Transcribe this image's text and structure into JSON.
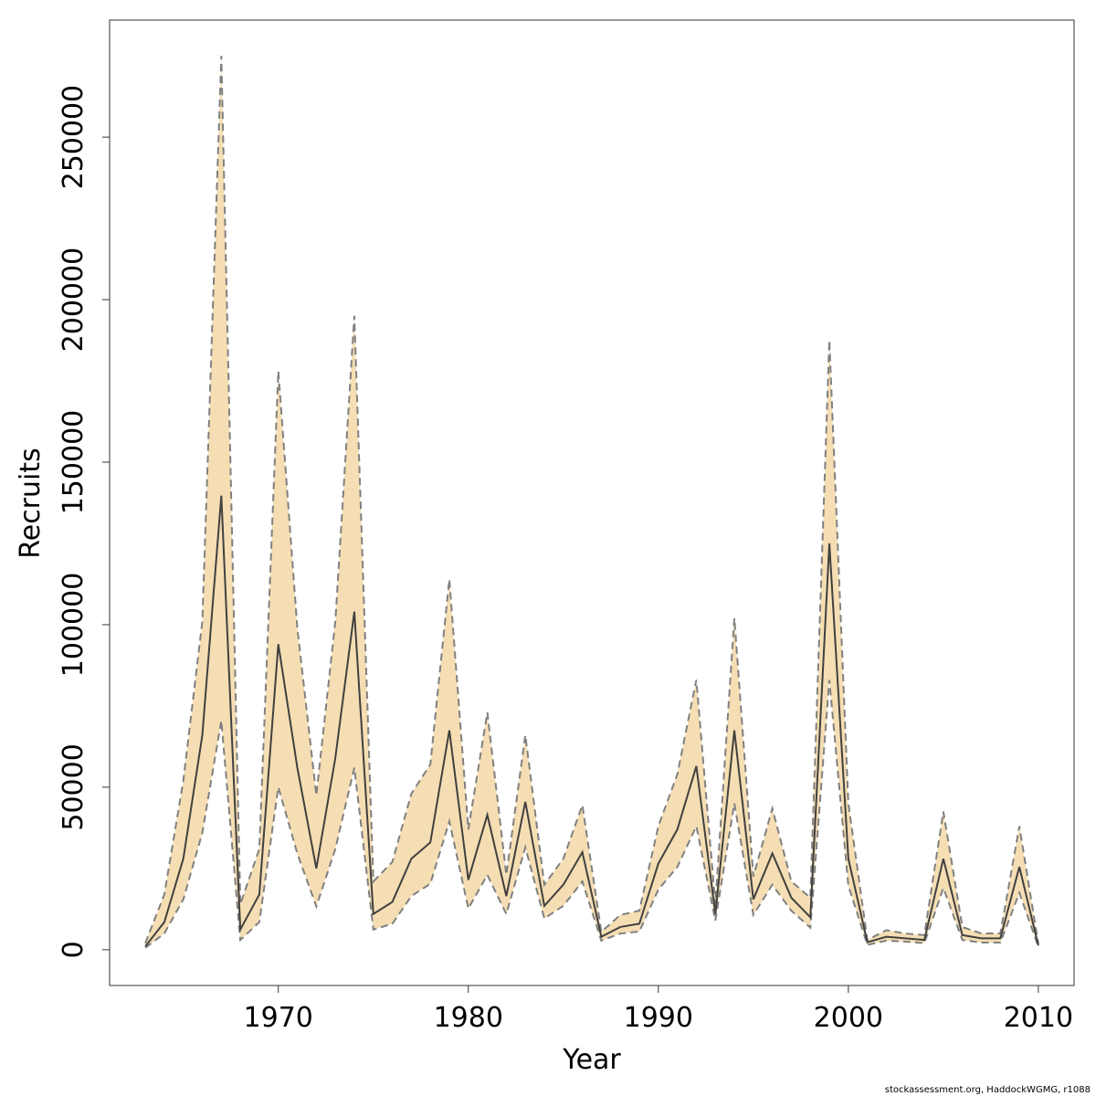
{
  "chart_data": {
    "type": "line",
    "x_label": "Year",
    "y_label": "Recruits",
    "footnote": "stockassessment.org, HaddockWGMG, r1088",
    "x": [
      1963,
      1964,
      1965,
      1966,
      1967,
      1968,
      1969,
      1970,
      1971,
      1972,
      1973,
      1974,
      1975,
      1976,
      1977,
      1978,
      1979,
      1980,
      1981,
      1982,
      1983,
      1984,
      1985,
      1986,
      1987,
      1988,
      1989,
      1990,
      1991,
      1992,
      1993,
      1994,
      1995,
      1996,
      1997,
      1998,
      1999,
      2000,
      2001,
      2002,
      2003,
      2004,
      2005,
      2006,
      2007,
      2008,
      2009,
      2010
    ],
    "values": [
      1000,
      8500,
      28000,
      66000,
      139700,
      6200,
      17000,
      94000,
      56000,
      25000,
      59000,
      104000,
      11000,
      14700,
      28000,
      33000,
      67500,
      21500,
      41500,
      16500,
      45500,
      13500,
      20000,
      30000,
      4000,
      7000,
      8000,
      26500,
      37000,
      56500,
      11000,
      67500,
      15500,
      29600,
      16000,
      10000,
      125000,
      28000,
      2300,
      4000,
      3500,
      3000,
      28000,
      4500,
      3500,
      3500,
      25500,
      1300
    ],
    "lower": [
      600,
      5000,
      15500,
      36000,
      70500,
      3000,
      8500,
      50000,
      29600,
      13300,
      31000,
      56000,
      6200,
      8000,
      16500,
      20300,
      39500,
      12700,
      23000,
      11000,
      31500,
      9600,
      13500,
      21000,
      2800,
      5000,
      5600,
      18500,
      25500,
      38000,
      9000,
      45000,
      10700,
      20000,
      12000,
      6800,
      83000,
      19700,
      1500,
      2800,
      2500,
      2000,
      19000,
      3000,
      2200,
      2200,
      17500,
      900
    ],
    "upper": [
      2000,
      17000,
      52000,
      101000,
      275000,
      14000,
      31000,
      178000,
      99000,
      47500,
      101000,
      195000,
      21000,
      27000,
      48000,
      57000,
      114000,
      37000,
      73000,
      23000,
      66000,
      20000,
      28000,
      44500,
      5500,
      10700,
      12000,
      38000,
      54000,
      83000,
      14000,
      102000,
      22500,
      43500,
      21000,
      16000,
      187500,
      45000,
      3000,
      6000,
      5000,
      4500,
      42500,
      7000,
      5000,
      5000,
      38000,
      1800
    ],
    "line_color": "#404040",
    "band_color": "#f5deb3",
    "band_edge_color": "#808080",
    "xlim": [
      1961.12,
      2011.88
    ],
    "ylim": [
      -11000,
      286000
    ],
    "xticks": [
      1970,
      1980,
      1990,
      2000,
      2010
    ],
    "yticks": [
      0,
      50000,
      100000,
      150000,
      200000,
      250000
    ]
  }
}
